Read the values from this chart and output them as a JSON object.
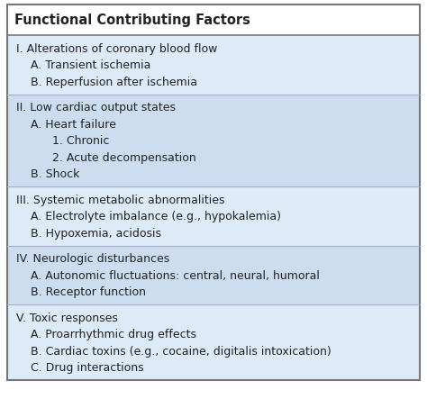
{
  "title": "Functional Contributing Factors",
  "title_fontsize": 10.5,
  "body_fontsize": 9.0,
  "header_bg": "#ffffff",
  "text_color": "#222222",
  "fig_width": 4.74,
  "fig_height": 4.64,
  "dpi": 100,
  "rows": [
    {
      "lines": [
        "I. Alterations of coronary blood flow",
        "    A. Transient ischemia",
        "    B. Reperfusion after ischemia"
      ],
      "shade": "#ddeaf7"
    },
    {
      "lines": [
        "II. Low cardiac output states",
        "    A. Heart failure",
        "          1. Chronic",
        "          2. Acute decompensation",
        "    B. Shock"
      ],
      "shade": "#ccddf0"
    },
    {
      "lines": [
        "III. Systemic metabolic abnormalities",
        "    A. Electrolyte imbalance (e.g., hypokalemia)",
        "    B. Hypoxemia, acidosis"
      ],
      "shade": "#ddeaf7"
    },
    {
      "lines": [
        "IV. Neurologic disturbances",
        "    A. Autonomic fluctuations: central, neural, humoral",
        "    B. Receptor function"
      ],
      "shade": "#ccddf0"
    },
    {
      "lines": [
        "V. Toxic responses",
        "    A. Proarrhythmic drug effects",
        "    B. Cardiac toxins (e.g., cocaine, digitalis intoxication)",
        "    C. Drug interactions"
      ],
      "shade": "#ddeaf7"
    }
  ]
}
